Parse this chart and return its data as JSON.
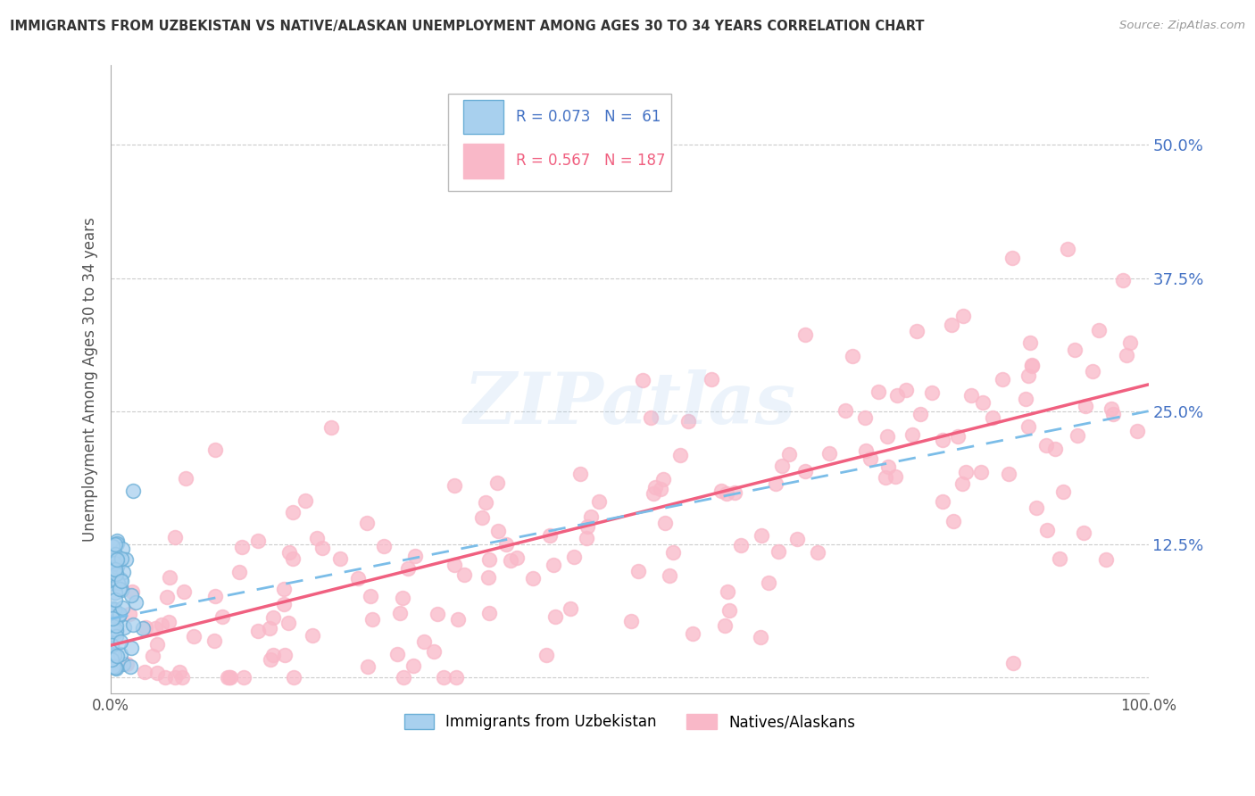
{
  "title": "IMMIGRANTS FROM UZBEKISTAN VS NATIVE/ALASKAN UNEMPLOYMENT AMONG AGES 30 TO 34 YEARS CORRELATION CHART",
  "source": "Source: ZipAtlas.com",
  "ylabel": "Unemployment Among Ages 30 to 34 years",
  "xlim": [
    0.0,
    1.0
  ],
  "ylim": [
    -0.015,
    0.575
  ],
  "yticks": [
    0.0,
    0.125,
    0.25,
    0.375,
    0.5
  ],
  "ytick_labels": [
    "",
    "12.5%",
    "25.0%",
    "37.5%",
    "50.0%"
  ],
  "xtick_labels": [
    "0.0%",
    "100.0%"
  ],
  "xticks": [
    0.0,
    1.0
  ],
  "r_uzbek": 0.073,
  "n_uzbek": 61,
  "r_native": 0.567,
  "n_native": 187,
  "color_uzbek_fill": "#a8d0ee",
  "color_uzbek_edge": "#6aaed6",
  "color_native_fill": "#f9b8c8",
  "color_native_edge": "#f06080",
  "color_uzbek_line": "#7bbde8",
  "color_native_line": "#f06080",
  "legend_label_uzbek": "Immigrants from Uzbekistan",
  "legend_label_native": "Natives/Alaskans",
  "background_color": "#ffffff",
  "grid_color": "#cccccc",
  "title_color": "#333333",
  "ytick_color": "#4472c4",
  "watermark_text": "ZIPatlas",
  "native_line_start_y": 0.03,
  "native_line_end_y": 0.275,
  "uzbek_line_start_y": 0.055,
  "uzbek_line_end_y": 0.25
}
